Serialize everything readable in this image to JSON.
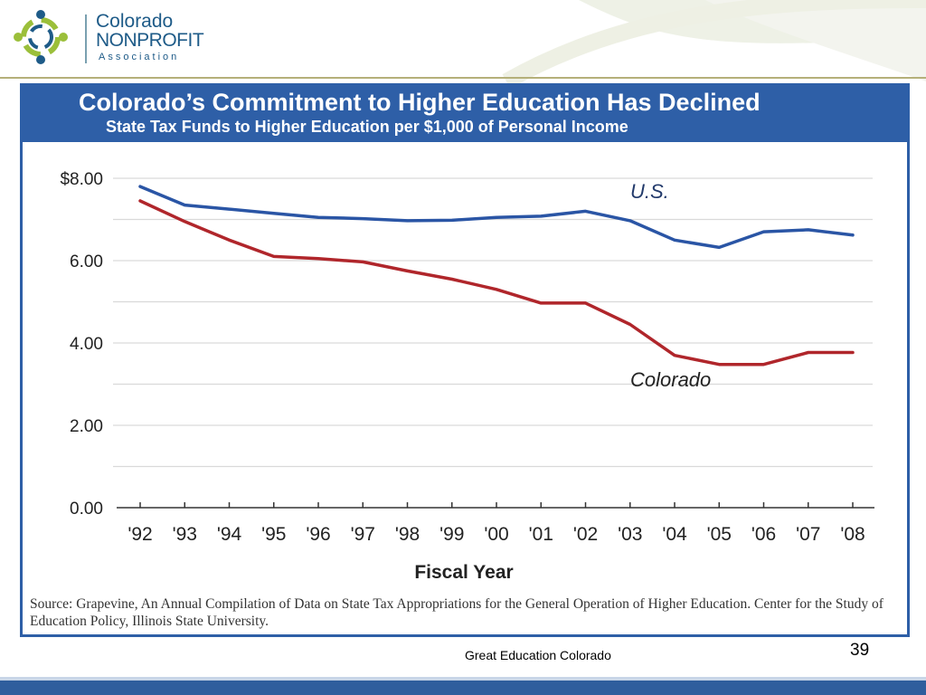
{
  "logo": {
    "line1": "Colorado",
    "line2": "NONPROFIT",
    "line3": "Association"
  },
  "footer": {
    "text": "Great Education Colorado",
    "page_number": "39"
  },
  "source": "Source: Grapevine, An Annual Compilation of Data on State Tax Appropriations for the General Operation of Higher Education. Center for the Study of Education Policy, Illinois State University.",
  "colors": {
    "panel_border": "#2e5fa7",
    "us_line": "#2a55a5",
    "colorado_line": "#b0262b",
    "grid": "#d9d9d9"
  },
  "chart_data": {
    "type": "line",
    "title": "Colorado’s Commitment to Higher Education Has Declined",
    "subtitle": "State Tax Funds to Higher Education per $1,000 of Personal Income",
    "xlabel": "Fiscal Year",
    "ylabel": "",
    "categories": [
      "'92",
      "'93",
      "'94",
      "'95",
      "'96",
      "'97",
      "'98",
      "'99",
      "'00",
      "'01",
      "'02",
      "'03",
      "'04",
      "'05",
      "'06",
      "'07",
      "'08"
    ],
    "y_ticks": [
      "0.00",
      "2.00",
      "4.00",
      "6.00",
      "$8.00"
    ],
    "ylim": [
      0,
      8
    ],
    "grid": true,
    "series": [
      {
        "name": "U.S.",
        "values": [
          7.8,
          7.35,
          7.25,
          7.15,
          7.05,
          7.02,
          6.97,
          6.98,
          7.05,
          7.08,
          7.2,
          6.97,
          6.5,
          6.32,
          6.7,
          6.75,
          6.62
        ]
      },
      {
        "name": "Colorado",
        "values": [
          7.45,
          6.95,
          6.5,
          6.1,
          6.05,
          5.97,
          5.75,
          5.55,
          5.3,
          4.97,
          4.97,
          4.45,
          3.7,
          3.48,
          3.48,
          3.77,
          3.77
        ]
      }
    ]
  }
}
